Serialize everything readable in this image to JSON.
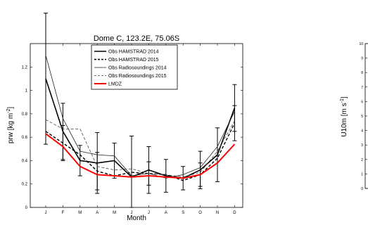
{
  "chart_data": [
    {
      "type": "line",
      "title": "Dome C, 123.2E, 75.06S",
      "xlabel": "Month",
      "ylabel_main": "prw [kg m",
      "ylabel_sup": "-2",
      "ylabel_close": "]",
      "categories": [
        "J",
        "F",
        "M",
        "A",
        "M",
        "J",
        "J",
        "A",
        "S",
        "O",
        "N",
        "D"
      ],
      "ylim": [
        0,
        1.4
      ],
      "yticks": [
        "0",
        "0.2",
        "0.4",
        "0.6",
        "0.8",
        "1",
        "1.2"
      ],
      "ytick_values": [
        0,
        0.2,
        0.4,
        0.6,
        0.8,
        1.0,
        1.2
      ],
      "legend_position": "top",
      "series": [
        {
          "name": "Obs HAMSTRAD 2014",
          "color": "#000000",
          "dash": "solid",
          "width": 1.6,
          "values": [
            1.1,
            0.65,
            0.4,
            0.38,
            0.4,
            0.26,
            0.32,
            0.27,
            0.25,
            0.32,
            0.45,
            0.85
          ],
          "errors": [
            0.56,
            0.24,
            0.13,
            0.26,
            0.15,
            0.35,
            0.2,
            0.14,
            0.1,
            0.16,
            0.23,
            0.2
          ]
        },
        {
          "name": "Obs HAMSTRAD 2015",
          "color": "#000000",
          "dash": "dashed",
          "width": 1.4,
          "values": [
            0.65,
            0.55,
            0.45,
            0.31,
            0.27,
            0.3,
            0.29,
            0.28,
            0.23,
            0.28,
            0.42,
            0.72
          ],
          "errors": [
            0,
            0.15,
            0,
            0.16,
            0,
            0,
            0.1,
            0,
            0,
            0.1,
            0,
            0.15
          ]
        },
        {
          "name": "Obs Radiosoundings 2014",
          "color": "#222222",
          "dash": "solid",
          "width": 0.8,
          "values": [
            1.3,
            0.76,
            0.48,
            0.45,
            0.44,
            0.27,
            0.29,
            0.25,
            0.28,
            0.34,
            0.52,
            0.82
          ],
          "errors": [
            0,
            0,
            0,
            0,
            0,
            0,
            0,
            0,
            0,
            0,
            0,
            0
          ]
        },
        {
          "name": "Obs Radiosoundings 2015",
          "color": "#444444",
          "dash": "dashed",
          "width": 0.8,
          "values": [
            0.75,
            0.67,
            0.67,
            0.35,
            0.32,
            0.33,
            0.29,
            0.28,
            0.26,
            0.3,
            0.48,
            0.74
          ],
          "errors": [
            0,
            0,
            0,
            0,
            0,
            0,
            0,
            0,
            0,
            0,
            0,
            0
          ]
        },
        {
          "name": "LMDZ",
          "color": "#ff0000",
          "dash": "solid",
          "width": 2,
          "values": [
            0.63,
            0.52,
            0.35,
            0.28,
            0.27,
            0.26,
            0.27,
            0.26,
            0.25,
            0.28,
            0.38,
            0.54
          ],
          "errors": [
            0,
            0,
            0,
            0,
            0,
            0,
            0,
            0,
            0,
            0,
            0,
            0
          ]
        }
      ]
    },
    {
      "type": "line",
      "title": "",
      "ylabel_main": "U10m [m s",
      "ylabel_sup": "-1",
      "ylabel_close": "]",
      "ylim": [
        0,
        10
      ],
      "yticks": [
        "0",
        "1",
        "2",
        "3",
        "4",
        "5",
        "6",
        "7",
        "8",
        "9",
        "10"
      ],
      "ytick_values": [
        0,
        1,
        2,
        3,
        4,
        5,
        6,
        7,
        8,
        9,
        10
      ],
      "series": []
    }
  ]
}
